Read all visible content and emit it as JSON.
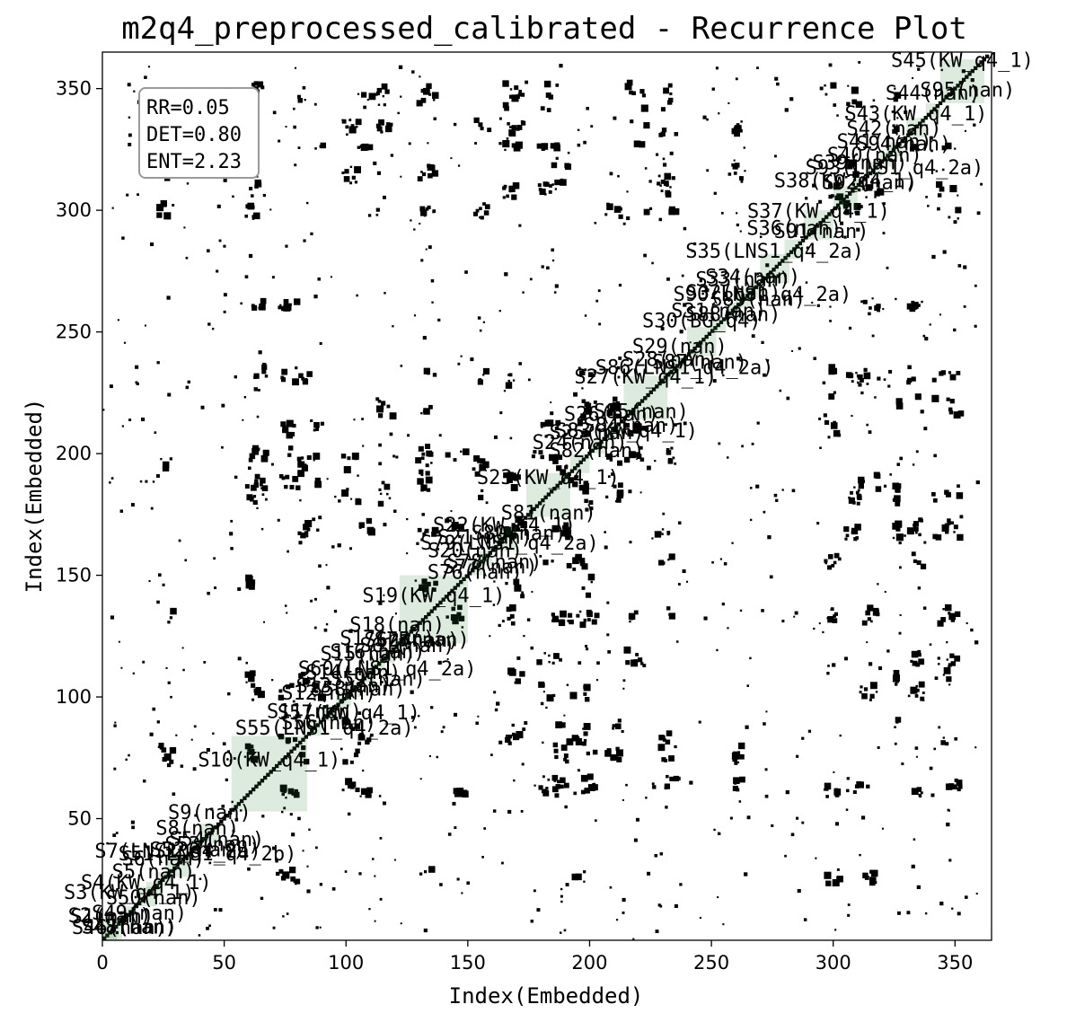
{
  "chart_data": {
    "type": "heatmap",
    "title": "m2q4_preprocessed_calibrated - Recurrence Plot",
    "xlabel": "Index(Embedded)",
    "ylabel": "Index(Embedded)",
    "xlim": [
      0,
      365
    ],
    "ylim": [
      0,
      365
    ],
    "x_ticks": [
      0,
      50,
      100,
      150,
      200,
      250,
      300,
      350
    ],
    "y_ticks": [
      50,
      100,
      150,
      200,
      250,
      300,
      350
    ],
    "grid": false,
    "stats": {
      "rr": "RR=0.05",
      "det": "DET=0.80",
      "ent": "ENT=2.23",
      "placement": "top-left"
    },
    "colors": {
      "recurrence": "#000000",
      "segment_fill": "#2e7d32",
      "background": "#ffffff"
    },
    "segments": [
      {
        "label": "S1(nan)",
        "start": 0,
        "end": 8
      },
      {
        "label": "S2(nan)",
        "start": 0,
        "end": 6
      },
      {
        "label": "S3(KW_q4_1)",
        "start": 8,
        "end": 14
      },
      {
        "label": "S4(KW_q4_1)",
        "start": 14,
        "end": 22
      },
      {
        "label": "S5(nan)",
        "start": 18,
        "end": 24
      },
      {
        "label": "S6(nan)",
        "start": 22,
        "end": 28
      },
      {
        "label": "S7(LNS1_q4_2a)",
        "start": 26,
        "end": 36
      },
      {
        "label": "S8(nan)",
        "start": 36,
        "end": 42
      },
      {
        "label": "S9(nan)",
        "start": 40,
        "end": 48
      },
      {
        "label": "S10(KW_q4_1)",
        "start": 53,
        "end": 84
      },
      {
        "label": "S11(nan)",
        "start": 84,
        "end": 90
      },
      {
        "label": "S12(nan)",
        "start": 90,
        "end": 96
      },
      {
        "label": "S13(nan)",
        "start": 96,
        "end": 102
      },
      {
        "label": "S14(nan)",
        "start": 100,
        "end": 106
      },
      {
        "label": "S15(nan)",
        "start": 106,
        "end": 112
      },
      {
        "label": "S16(nan)",
        "start": 110,
        "end": 116
      },
      {
        "label": "S17(nan)",
        "start": 114,
        "end": 120
      },
      {
        "label": "S18(nan)",
        "start": 118,
        "end": 124
      },
      {
        "label": "S19(KW_q4_1)",
        "start": 122,
        "end": 150
      },
      {
        "label": "S20(nan)",
        "start": 150,
        "end": 156
      },
      {
        "label": "S21(nan)",
        "start": 154,
        "end": 160
      },
      {
        "label": "S22(KW_q4_1)",
        "start": 160,
        "end": 170
      },
      {
        "label": "S23(KW_q4_1)",
        "start": 174,
        "end": 192
      },
      {
        "label": "S24(nan)",
        "start": 192,
        "end": 200
      },
      {
        "label": "S25(nan)",
        "start": 200,
        "end": 206
      },
      {
        "label": "S26(nan)",
        "start": 206,
        "end": 212
      },
      {
        "label": "S27(KW_q4_1)",
        "start": 214,
        "end": 232
      },
      {
        "label": "S28(nan)",
        "start": 230,
        "end": 236
      },
      {
        "label": "S29(nan)",
        "start": 234,
        "end": 240
      },
      {
        "label": "S30(BG_q4)",
        "start": 240,
        "end": 252
      },
      {
        "label": "S31(nan)",
        "start": 250,
        "end": 256
      },
      {
        "label": "S32(nan)",
        "start": 256,
        "end": 262
      },
      {
        "label": "S33(nan)",
        "start": 260,
        "end": 266
      },
      {
        "label": "S34(nan)",
        "start": 264,
        "end": 270
      },
      {
        "label": "S35(LNS1_q4_2a)",
        "start": 270,
        "end": 282
      },
      {
        "label": "S36(nan)",
        "start": 280,
        "end": 288
      },
      {
        "label": "S37(KW_q4_1)",
        "start": 288,
        "end": 300
      },
      {
        "label": "S38(KW_q4_1)",
        "start": 300,
        "end": 310
      },
      {
        "label": "S39(nan)",
        "start": 308,
        "end": 314
      },
      {
        "label": "S40(nan)",
        "start": 314,
        "end": 320
      },
      {
        "label": "S41(nan)",
        "start": 318,
        "end": 324
      },
      {
        "label": "S42(nan)",
        "start": 322,
        "end": 328
      },
      {
        "label": "S43(KW_q4_1)",
        "start": 330,
        "end": 338
      },
      {
        "label": "S44(nan)",
        "start": 338,
        "end": 344
      },
      {
        "label": "S45(KW_q4_1)",
        "start": 344,
        "end": 362
      }
    ],
    "extra_labels": [
      {
        "label": "S46(nan)",
        "at": 4
      },
      {
        "label": "S47(nan)",
        "at": 6
      },
      {
        "label": "S48(nan)",
        "at": 8
      },
      {
        "label": "S49(nan)",
        "at": 10
      },
      {
        "label": "S50(nan)",
        "at": 18
      },
      {
        "label": "S51(LNS1_q4_2b)",
        "at": 38
      },
      {
        "label": "S52(nan)",
        "at": 36
      },
      {
        "label": "S53(nan)",
        "at": 40
      },
      {
        "label": "S54(nan)",
        "at": 44
      },
      {
        "label": "S55(LNS1_q4_2a)",
        "at": 86
      },
      {
        "label": "S56(nan)",
        "at": 90
      },
      {
        "label": "S57(KW_q4_1)",
        "at": 96
      },
      {
        "label": "S58(nan)",
        "at": 102
      },
      {
        "label": "S59(nan)",
        "at": 108
      },
      {
        "label": "S60(LNS1_q4_2a)",
        "at": 114
      },
      {
        "label": "S61(nan)",
        "at": 120
      },
      {
        "label": "S62(nan)",
        "at": 124
      },
      {
        "label": "S75(nan)",
        "at": 126
      },
      {
        "label": "S76(nan)",
        "at": 150
      },
      {
        "label": "S77(nan)",
        "at": 154
      },
      {
        "label": "S78(nan)",
        "at": 158
      },
      {
        "label": "S79(LNS1_q4_2a)",
        "at": 162
      },
      {
        "label": "S80(nan)",
        "at": 168
      },
      {
        "label": "S81(nan)",
        "at": 178
      },
      {
        "label": "S82(nan)",
        "at": 200
      },
      {
        "label": "S83(KW_q4_1)",
        "at": 210
      },
      {
        "label": "S84(nan)",
        "at": 214
      },
      {
        "label": "S85(nan)",
        "at": 216
      },
      {
        "label": "S86(LNS1_q4_2a)",
        "at": 236
      },
      {
        "label": "S87(nan)",
        "at": 240
      },
      {
        "label": "S88(nan)",
        "at": 256
      },
      {
        "label": "S89(nan)",
        "at": 264
      },
      {
        "label": "S90(LNS1_q4_2a)",
        "at": 268
      },
      {
        "label": "S91(nan)",
        "at": 290
      },
      {
        "label": "S92(nan)",
        "at": 312
      },
      {
        "label": "S93(LNS1_q4_2a)",
        "at": 320
      },
      {
        "label": "S94(nan)",
        "at": 326
      },
      {
        "label": "S95(nan)",
        "at": 350
      }
    ]
  }
}
